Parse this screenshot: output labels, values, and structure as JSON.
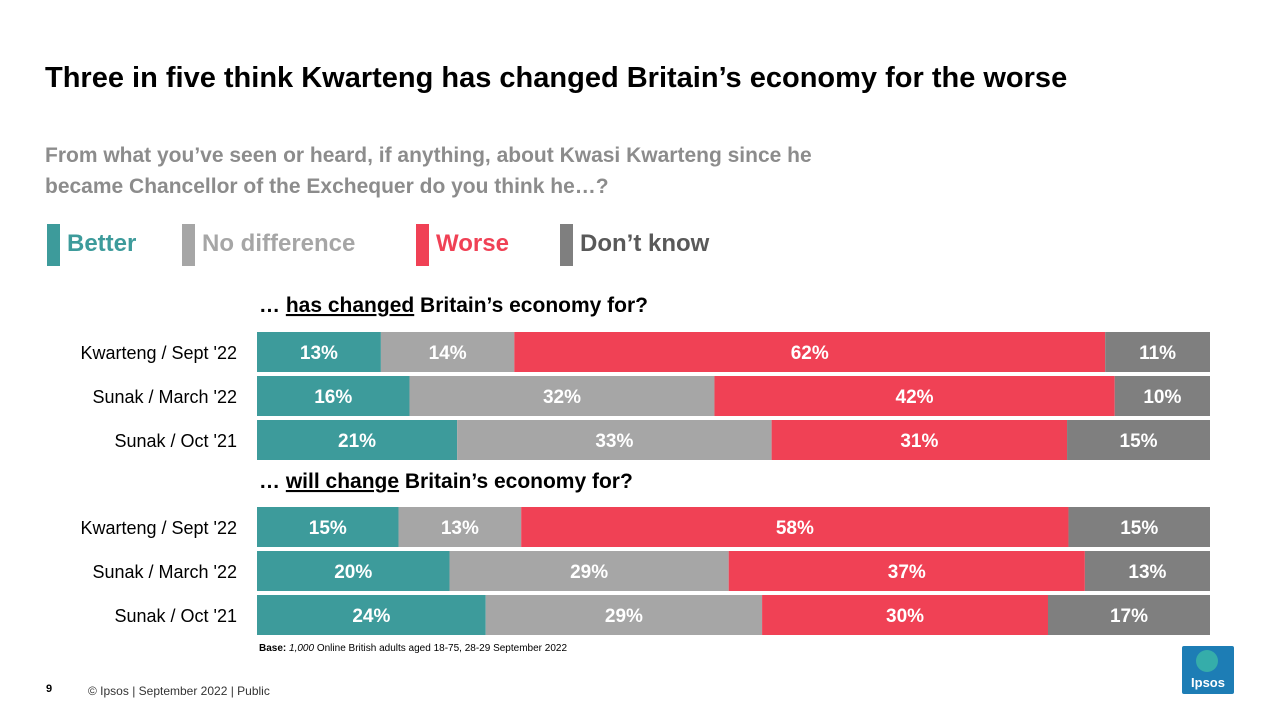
{
  "title": "Three in five think Kwarteng has changed Britain’s economy for the worse",
  "subtitle": "From what you’ve seen or heard, if anything, about Kwasi Kwarteng since he became Chancellor of the Exchequer do you think he…?",
  "legend": [
    {
      "label": "Better",
      "color": "#3d9b9b",
      "text_color": "#3d9b9b"
    },
    {
      "label": "No difference",
      "color": "#a6a6a6",
      "text_color": "#a6a6a6"
    },
    {
      "label": "Worse",
      "color": "#f04155",
      "text_color": "#f04155"
    },
    {
      "label": "Don’t know",
      "color": "#7f7f7f",
      "text_color": "#595959"
    }
  ],
  "chart_data": {
    "type": "bar",
    "orientation": "horizontal",
    "stacked": true,
    "percent": true,
    "series_names": [
      "Better",
      "No difference",
      "Worse",
      "Don’t know"
    ],
    "colors": [
      "#3d9b9b",
      "#a6a6a6",
      "#f04155",
      "#7f7f7f"
    ],
    "groups": [
      {
        "heading_prefix": "… ",
        "heading_underlined": "has changed",
        "heading_suffix": " Britain’s economy for?",
        "rows": [
          {
            "label": "Kwarteng / Sept '22",
            "values": [
              13,
              14,
              62,
              11
            ]
          },
          {
            "label": "Sunak / March '22",
            "values": [
              16,
              32,
              42,
              10
            ]
          },
          {
            "label": "Sunak / Oct '21",
            "values": [
              21,
              33,
              31,
              15
            ]
          }
        ]
      },
      {
        "heading_prefix": "… ",
        "heading_underlined": "will change",
        "heading_suffix": " Britain’s economy for?",
        "rows": [
          {
            "label": "Kwarteng / Sept '22",
            "values": [
              15,
              13,
              58,
              15
            ]
          },
          {
            "label": "Sunak / March '22",
            "values": [
              20,
              29,
              37,
              13
            ]
          },
          {
            "label": "Sunak / Oct '21",
            "values": [
              24,
              29,
              30,
              17
            ]
          }
        ]
      }
    ]
  },
  "base": {
    "label": "Base:",
    "count": "1,000",
    "text": "Online British adults aged 18-75, 28-29 September 2022"
  },
  "footer": {
    "page_number": "9",
    "text": "© Ipsos |  September 2022 | Public"
  },
  "logo": {
    "text": "Ipsos"
  }
}
